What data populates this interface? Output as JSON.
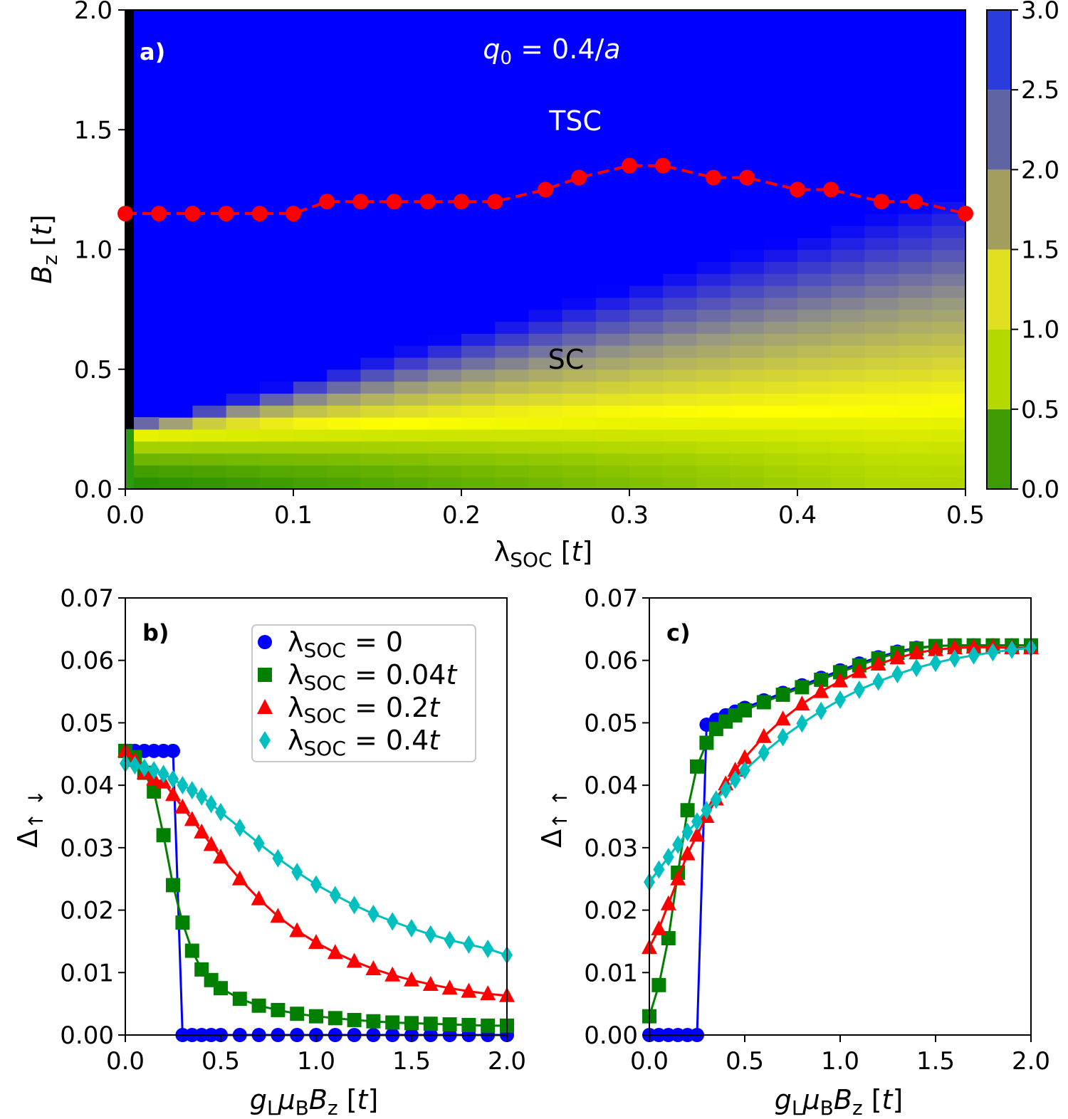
{
  "chart_data": [
    {
      "id": "a",
      "type": "heatmap",
      "panel_label": "a)",
      "xlabel": "λ_SOC [t]",
      "ylabel": "B_z [t]",
      "xlim": [
        0,
        0.5
      ],
      "ylim": [
        0,
        2.0
      ],
      "xticks": [
        "0.0",
        "0.1",
        "0.2",
        "0.3",
        "0.4",
        "0.5"
      ],
      "yticks": [
        "0.0",
        "0.5",
        "1.0",
        "1.5",
        "2.0"
      ],
      "colorbar": {
        "ticks": [
          "0.0",
          "0.5",
          "1.0",
          "1.5",
          "2.0",
          "2.5",
          "3.0"
        ],
        "range": [
          0,
          3.0
        ],
        "levels": [
          {
            "from": 0.0,
            "to": 0.5,
            "color": "#3f9a04"
          },
          {
            "from": 0.5,
            "to": 1.0,
            "color": "#b4d900"
          },
          {
            "from": 1.0,
            "to": 1.5,
            "color": "#e0e020"
          },
          {
            "from": 1.5,
            "to": 2.0,
            "color": "#a39d5e"
          },
          {
            "from": 2.0,
            "to": 2.5,
            "color": "#5f65a3"
          },
          {
            "from": 2.5,
            "to": 3.0,
            "color": "#2a3cdc"
          }
        ]
      },
      "annotations": [
        {
          "text": "q0 = 0.4/a",
          "x": 0.25,
          "y": 1.85
        },
        {
          "text": "TSC",
          "x": 0.267,
          "y": 1.55
        },
        {
          "text": "SC",
          "x": 0.262,
          "y": 0.54
        }
      ],
      "boundary": {
        "x": [
          0,
          0.02,
          0.04,
          0.06,
          0.08,
          0.1,
          0.12,
          0.14,
          0.16,
          0.18,
          0.2,
          0.22,
          0.25,
          0.27,
          0.3,
          0.32,
          0.35,
          0.37,
          0.4,
          0.42,
          0.45,
          0.47,
          0.5
        ],
        "y": [
          1.15,
          1.15,
          1.15,
          1.15,
          1.15,
          1.15,
          1.2,
          1.2,
          1.2,
          1.2,
          1.2,
          1.2,
          1.25,
          1.3,
          1.35,
          1.35,
          1.3,
          1.3,
          1.25,
          1.25,
          1.2,
          1.2,
          1.15
        ]
      },
      "colors": {
        "tsc": "#0000ff",
        "sc_peak": "#ffff00",
        "low": "#1e8c00",
        "black_strip": "#000000",
        "boundary": "#ff0000"
      }
    },
    {
      "id": "b",
      "type": "line",
      "panel_label": "b)",
      "xlabel": "g_L μ_B B_z [t]",
      "ylabel": "Δ↑↓",
      "xlim": [
        0,
        2.0
      ],
      "ylim": [
        0,
        0.07
      ],
      "xticks": [
        "0.0",
        "0.5",
        "1.0",
        "1.5",
        "2.0"
      ],
      "yticks": [
        "0.00",
        "0.01",
        "0.02",
        "0.03",
        "0.04",
        "0.05",
        "0.06",
        "0.07"
      ],
      "series": [
        {
          "name": "λSOC = 0",
          "color": "#0000ff",
          "marker": "circle",
          "x": [
            0,
            0.05,
            0.1,
            0.15,
            0.2,
            0.25,
            0.3,
            0.35,
            0.4,
            0.45,
            0.5,
            0.6,
            0.7,
            0.8,
            0.9,
            1.0,
            1.1,
            1.2,
            1.3,
            1.4,
            1.5,
            1.6,
            1.7,
            1.8,
            1.9,
            2.0
          ],
          "y": [
            0.0455,
            0.0455,
            0.0455,
            0.0455,
            0.0455,
            0.0455,
            0.0,
            0.0,
            0.0,
            0.0,
            0.0,
            0.0,
            0.0,
            0.0,
            0.0,
            0.0,
            0.0,
            0.0,
            0.0,
            0.0,
            0.0,
            0.0,
            0.0,
            0.0,
            0.0,
            0.0
          ]
        },
        {
          "name": "λSOC = 0.04t",
          "color": "#007f00",
          "marker": "square",
          "x": [
            0,
            0.05,
            0.1,
            0.15,
            0.2,
            0.25,
            0.3,
            0.35,
            0.4,
            0.45,
            0.5,
            0.6,
            0.7,
            0.8,
            0.9,
            1.0,
            1.1,
            1.2,
            1.3,
            1.4,
            1.5,
            1.6,
            1.7,
            1.8,
            1.9,
            2.0
          ],
          "y": [
            0.0455,
            0.0445,
            0.042,
            0.039,
            0.032,
            0.024,
            0.018,
            0.0135,
            0.0105,
            0.0088,
            0.0075,
            0.0058,
            0.0047,
            0.004,
            0.0034,
            0.003,
            0.0027,
            0.0024,
            0.0022,
            0.002,
            0.0019,
            0.0018,
            0.0017,
            0.0016,
            0.0015,
            0.0015
          ]
        },
        {
          "name": "λSOC = 0.2t",
          "color": "#ff0000",
          "marker": "triangle",
          "x": [
            0,
            0.05,
            0.1,
            0.15,
            0.2,
            0.25,
            0.3,
            0.35,
            0.4,
            0.45,
            0.5,
            0.6,
            0.7,
            0.8,
            0.9,
            1.0,
            1.1,
            1.2,
            1.3,
            1.4,
            1.5,
            1.6,
            1.7,
            1.8,
            1.9,
            2.0
          ],
          "y": [
            0.0455,
            0.044,
            0.042,
            0.041,
            0.0405,
            0.0385,
            0.0365,
            0.0345,
            0.0325,
            0.0305,
            0.0285,
            0.025,
            0.0218,
            0.019,
            0.0167,
            0.0148,
            0.0132,
            0.0118,
            0.0106,
            0.0096,
            0.0088,
            0.0081,
            0.0075,
            0.007,
            0.0066,
            0.0063
          ]
        },
        {
          "name": "λSOC = 0.4t",
          "color": "#00bfbf",
          "marker": "diamond",
          "x": [
            0,
            0.05,
            0.1,
            0.15,
            0.2,
            0.25,
            0.3,
            0.35,
            0.4,
            0.45,
            0.5,
            0.6,
            0.7,
            0.8,
            0.9,
            1.0,
            1.1,
            1.2,
            1.3,
            1.4,
            1.5,
            1.6,
            1.7,
            1.8,
            1.9,
            2.0
          ],
          "y": [
            0.0435,
            0.0432,
            0.0428,
            0.0424,
            0.0418,
            0.041,
            0.04,
            0.0392,
            0.0382,
            0.037,
            0.0357,
            0.0332,
            0.0307,
            0.0283,
            0.0261,
            0.0241,
            0.0224,
            0.0208,
            0.0194,
            0.0182,
            0.0171,
            0.0161,
            0.0152,
            0.0145,
            0.0138,
            0.0128
          ]
        }
      ],
      "legend": {
        "placement": "upper-right",
        "entries": [
          "λSOC = 0",
          "λSOC = 0.04t",
          "λSOC = 0.2t",
          "λSOC = 0.4t"
        ]
      }
    },
    {
      "id": "c",
      "type": "line",
      "panel_label": "c)",
      "xlabel": "g_L μ_B B_z [t]",
      "ylabel": "Δ↑↑",
      "xlim": [
        0,
        2.0
      ],
      "ylim": [
        0,
        0.07
      ],
      "xticks": [
        "0.0",
        "0.5",
        "1.0",
        "1.5",
        "2.0"
      ],
      "yticks": [
        "0.00",
        "0.01",
        "0.02",
        "0.03",
        "0.04",
        "0.05",
        "0.06",
        "0.07"
      ],
      "series": [
        {
          "name": "λSOC = 0",
          "color": "#0000ff",
          "marker": "circle",
          "x": [
            0,
            0.05,
            0.1,
            0.15,
            0.2,
            0.25,
            0.3,
            0.35,
            0.4,
            0.45,
            0.5,
            0.6,
            0.7,
            0.8,
            0.9,
            1.0,
            1.1,
            1.2,
            1.3,
            1.4,
            1.5,
            1.6,
            1.7,
            1.8,
            1.9,
            2.0
          ],
          "y": [
            0.0,
            0.0,
            0.0,
            0.0,
            0.0,
            0.0,
            0.0497,
            0.0505,
            0.0512,
            0.0518,
            0.0524,
            0.0536,
            0.0548,
            0.056,
            0.0572,
            0.0584,
            0.0595,
            0.0605,
            0.0614,
            0.062,
            0.0623,
            0.0624,
            0.0624,
            0.0624,
            0.0624,
            0.0624
          ]
        },
        {
          "name": "λSOC = 0.04t",
          "color": "#007f00",
          "marker": "square",
          "x": [
            0,
            0.05,
            0.1,
            0.15,
            0.2,
            0.25,
            0.3,
            0.35,
            0.4,
            0.45,
            0.5,
            0.6,
            0.7,
            0.8,
            0.9,
            1.0,
            1.1,
            1.2,
            1.3,
            1.4,
            1.5,
            1.6,
            1.7,
            1.8,
            1.9,
            2.0
          ],
          "y": [
            0.003,
            0.008,
            0.0155,
            0.026,
            0.036,
            0.043,
            0.0468,
            0.049,
            0.0502,
            0.0512,
            0.052,
            0.0533,
            0.0545,
            0.0557,
            0.0569,
            0.0581,
            0.0592,
            0.0603,
            0.0612,
            0.0619,
            0.0623,
            0.0624,
            0.0624,
            0.0624,
            0.0624,
            0.0624
          ]
        },
        {
          "name": "λSOC = 0.2t",
          "color": "#ff0000",
          "marker": "triangle",
          "x": [
            0,
            0.05,
            0.1,
            0.15,
            0.2,
            0.25,
            0.3,
            0.35,
            0.4,
            0.45,
            0.5,
            0.6,
            0.7,
            0.8,
            0.9,
            1.0,
            1.1,
            1.2,
            1.3,
            1.4,
            1.5,
            1.6,
            1.7,
            1.8,
            1.9,
            2.0
          ],
          "y": [
            0.014,
            0.017,
            0.021,
            0.025,
            0.029,
            0.032,
            0.035,
            0.0378,
            0.0402,
            0.0424,
            0.0444,
            0.0478,
            0.0506,
            0.053,
            0.055,
            0.0567,
            0.0582,
            0.0594,
            0.0604,
            0.0612,
            0.0617,
            0.062,
            0.0621,
            0.0621,
            0.062,
            0.062
          ]
        },
        {
          "name": "λSOC = 0.4t",
          "color": "#00bfbf",
          "marker": "diamond",
          "x": [
            0,
            0.05,
            0.1,
            0.15,
            0.2,
            0.25,
            0.3,
            0.35,
            0.4,
            0.45,
            0.5,
            0.6,
            0.7,
            0.8,
            0.9,
            1.0,
            1.1,
            1.2,
            1.3,
            1.4,
            1.5,
            1.6,
            1.7,
            1.8,
            1.9,
            2.0
          ],
          "y": [
            0.0245,
            0.0265,
            0.0285,
            0.0305,
            0.0325,
            0.0342,
            0.036,
            0.0377,
            0.0393,
            0.0409,
            0.0424,
            0.0452,
            0.0477,
            0.0499,
            0.0519,
            0.0537,
            0.0553,
            0.0566,
            0.0578,
            0.0588,
            0.0596,
            0.0603,
            0.0608,
            0.0613,
            0.0617,
            0.062
          ]
        }
      ]
    }
  ]
}
